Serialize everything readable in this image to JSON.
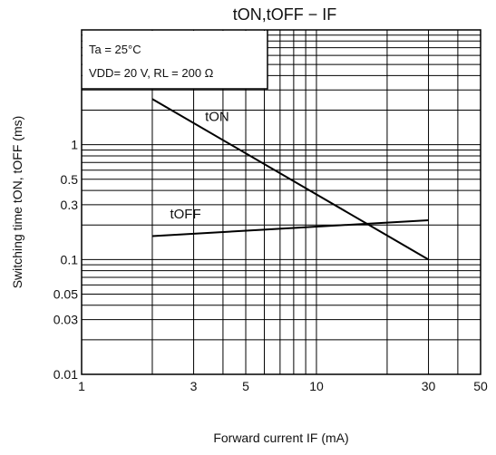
{
  "chart_data": {
    "type": "line",
    "title": "tON,tOFF − IF",
    "xlabel": "Forward current IF (mA)",
    "ylabel": "Switching time tON, tOFF (ms)",
    "x_scale": "log",
    "y_scale": "log",
    "xlim": [
      1,
      50
    ],
    "ylim": [
      0.01,
      10
    ],
    "grid": true,
    "x_ticks": [
      {
        "value": 1,
        "label": "1"
      },
      {
        "value": 3,
        "label": "3"
      },
      {
        "value": 5,
        "label": "5"
      },
      {
        "value": 10,
        "label": "10"
      },
      {
        "value": 30,
        "label": "30"
      },
      {
        "value": 50,
        "label": "50"
      }
    ],
    "y_ticks": [
      {
        "value": 0.01,
        "label": "0.01"
      },
      {
        "value": 0.03,
        "label": "0.03"
      },
      {
        "value": 0.05,
        "label": "0.05"
      },
      {
        "value": 0.1,
        "label": "0.1"
      },
      {
        "value": 0.3,
        "label": "0.3"
      },
      {
        "value": 0.5,
        "label": "0.5"
      },
      {
        "value": 1,
        "label": "1"
      }
    ],
    "conditions": {
      "line1": "Ta = 25°C",
      "line2": "VDD= 20 V, RL = 200 Ω"
    },
    "series": [
      {
        "name": "tON",
        "x": [
          2,
          30
        ],
        "y": [
          2.5,
          0.1
        ]
      },
      {
        "name": "tOFF",
        "x": [
          2,
          30
        ],
        "y": [
          0.16,
          0.22
        ]
      }
    ]
  }
}
